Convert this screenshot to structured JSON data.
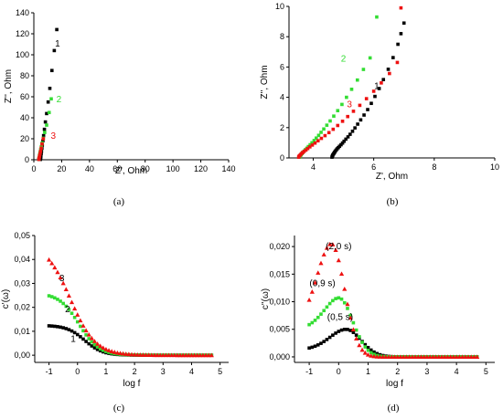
{
  "chart_data": [
    {
      "panel": "a",
      "type": "scatter",
      "caption": "(a)",
      "xlabel": "Z', Ohm",
      "ylabel": "Z'', Ohm",
      "xlim": [
        0,
        140
      ],
      "ylim": [
        0,
        140
      ],
      "xticks": [
        0,
        20,
        40,
        60,
        80,
        100,
        120,
        140
      ],
      "yticks": [
        0,
        20,
        40,
        60,
        80,
        100,
        120,
        140
      ],
      "grid": false,
      "series": [
        {
          "name": "1",
          "color": "#000000",
          "marker": "square",
          "x": [
            4.7,
            4.8,
            4.9,
            5.0,
            5.1,
            5.3,
            5.5,
            5.8,
            6.1,
            6.5,
            7.0,
            7.6,
            8.3,
            9.2,
            10.3,
            11.5,
            13.0,
            14.7,
            16.5
          ],
          "y": [
            0.3,
            1.0,
            2.0,
            3.0,
            4.5,
            6.0,
            8.0,
            11.0,
            14.0,
            18.0,
            23.0,
            29.0,
            36.0,
            44.0,
            55.0,
            68.0,
            85.0,
            104.0,
            124.0
          ]
        },
        {
          "name": "2",
          "color": "#33dd33",
          "marker": "square",
          "x": [
            3.6,
            3.7,
            3.8,
            4.0,
            4.2,
            4.5,
            4.9,
            5.4,
            6.0,
            6.8,
            7.8,
            9.2,
            11.0,
            12.5
          ],
          "y": [
            0.3,
            1.0,
            2.0,
            3.5,
            5.0,
            7.0,
            9.5,
            12.5,
            16.0,
            20.5,
            26.0,
            33.0,
            45.0,
            58.0
          ]
        },
        {
          "name": "3",
          "color": "#ee1111",
          "marker": "square",
          "x": [
            3.6,
            3.7,
            3.9,
            4.1,
            4.4,
            4.8,
            5.3,
            5.9,
            6.8
          ],
          "y": [
            0.3,
            1.0,
            2.0,
            3.5,
            5.5,
            8.0,
            11.0,
            15.0,
            20.0
          ]
        }
      ],
      "annotations": [
        {
          "text": "1",
          "x": 17,
          "y": 108,
          "color": "#000000"
        },
        {
          "text": "2",
          "x": 18,
          "y": 55,
          "color": "#33dd33"
        },
        {
          "text": "3",
          "x": 14,
          "y": 20,
          "color": "#ee1111"
        }
      ]
    },
    {
      "panel": "b",
      "type": "scatter",
      "caption": "(b)",
      "xlabel": "Z', Ohm",
      "ylabel": "Z'', Ohm",
      "xlim": [
        3.2,
        10
      ],
      "ylim": [
        0,
        10
      ],
      "xticks": [
        4,
        6,
        8,
        10
      ],
      "yticks": [
        0,
        2,
        4,
        6,
        8,
        10
      ],
      "grid": false,
      "series": [
        {
          "name": "1",
          "color": "#000000",
          "marker": "square",
          "x": [
            4.62,
            4.63,
            4.64,
            4.65,
            4.67,
            4.69,
            4.71,
            4.73,
            4.76,
            4.79,
            4.83,
            4.87,
            4.92,
            4.97,
            5.02,
            5.08,
            5.15,
            5.22,
            5.3,
            5.38,
            5.47,
            5.57,
            5.68,
            5.8,
            5.92,
            6.04,
            6.18,
            6.32,
            6.48,
            6.64,
            6.8
          ],
          "y": [
            0.05,
            0.1,
            0.15,
            0.2,
            0.26,
            0.32,
            0.38,
            0.45,
            0.52,
            0.6,
            0.68,
            0.77,
            0.87,
            0.98,
            1.1,
            1.24,
            1.39,
            1.56,
            1.76,
            1.98,
            2.23,
            2.51,
            2.83,
            3.19,
            3.6,
            4.06,
            4.58,
            5.17,
            5.85,
            6.62,
            7.5
          ]
        },
        {
          "name": "2",
          "color": "#33dd33",
          "marker": "square",
          "x": [
            3.55,
            3.56,
            3.58,
            3.6,
            3.63,
            3.66,
            3.7,
            3.74,
            3.79,
            3.84,
            3.9,
            3.96,
            4.03,
            4.1,
            4.18,
            4.26,
            4.35,
            4.45,
            4.56,
            4.68,
            4.81,
            4.95,
            5.1,
            5.27,
            5.46,
            5.66
          ],
          "y": [
            0.05,
            0.1,
            0.16,
            0.22,
            0.29,
            0.37,
            0.45,
            0.54,
            0.64,
            0.75,
            0.87,
            1.0,
            1.15,
            1.31,
            1.49,
            1.69,
            1.91,
            2.16,
            2.44,
            2.76,
            3.12,
            3.53,
            4.0,
            4.53,
            5.14,
            5.84
          ]
        },
        {
          "name": "3",
          "color": "#ee1111",
          "marker": "square",
          "x": [
            3.52,
            3.53,
            3.55,
            3.58,
            3.61,
            3.65,
            3.7,
            3.76,
            3.82,
            3.89,
            3.97,
            4.06,
            4.16,
            4.27,
            4.39,
            4.52,
            4.66,
            4.81,
            4.97,
            5.14,
            5.33,
            5.54,
            5.76,
            6.0,
            6.25,
            6.52
          ],
          "y": [
            0.05,
            0.1,
            0.15,
            0.21,
            0.28,
            0.35,
            0.43,
            0.52,
            0.62,
            0.73,
            0.85,
            0.98,
            1.13,
            1.29,
            1.47,
            1.67,
            1.89,
            2.14,
            2.42,
            2.73,
            3.08,
            3.47,
            3.91,
            4.4,
            4.95,
            5.57
          ]
        }
      ],
      "extra_points": [
        {
          "series": "1",
          "x": [
            6.9,
            7.0
          ],
          "y": [
            8.2,
            8.9
          ]
        },
        {
          "series": "2",
          "x": [
            5.88,
            6.1
          ],
          "y": [
            6.6,
            9.3
          ]
        },
        {
          "series": "3",
          "x": [
            6.78,
            6.9
          ],
          "y": [
            6.3,
            9.9
          ]
        }
      ],
      "annotations": [
        {
          "text": "1",
          "x": 6.1,
          "y": 4.55,
          "color": "#000000"
        },
        {
          "text": "2",
          "x": 5.0,
          "y": 6.35,
          "color": "#33dd33"
        },
        {
          "text": "3",
          "x": 5.2,
          "y": 3.35,
          "color": "#ee1111"
        }
      ]
    },
    {
      "panel": "c",
      "type": "scatter",
      "caption": "(c)",
      "xlabel": "log f",
      "ylabel": "c'(ω)",
      "xlim": [
        -1.5,
        5.3
      ],
      "ylim": [
        -0.003,
        0.05
      ],
      "xticks": [
        -1,
        0,
        1,
        2,
        3,
        4,
        5
      ],
      "yticks": [
        0,
        0.01,
        0.02,
        0.03,
        0.04,
        0.05
      ],
      "ytick_labels": [
        "0,00",
        "0,01",
        "0,02",
        "0,03",
        "0,04",
        "0,05"
      ],
      "grid": false,
      "series": [
        {
          "name": "1",
          "color": "#000000",
          "marker": "square",
          "shape": "logistic",
          "low": 0.0125,
          "k": 3.2,
          "x0": 0.25
        },
        {
          "name": "2",
          "color": "#33dd33",
          "marker": "square",
          "shape": "logistic",
          "low": 0.026,
          "k": 2.9,
          "x0": 0.05
        },
        {
          "name": "3",
          "color": "#ee1111",
          "marker": "triangle",
          "shape": "logistic",
          "low": 0.047,
          "k": 2.3,
          "x0": -0.25
        }
      ],
      "x_range": [
        -1.0,
        4.7
      ],
      "points": 58,
      "annotations": [
        {
          "text": "3",
          "x": -0.55,
          "y": 0.031,
          "color": "#000000"
        },
        {
          "text": "2",
          "x": -0.35,
          "y": 0.018,
          "color": "#000000"
        },
        {
          "text": "1",
          "x": -0.15,
          "y": 0.0055,
          "color": "#000000"
        }
      ]
    },
    {
      "panel": "d",
      "type": "scatter",
      "caption": "(d)",
      "xlabel": "log f",
      "ylabel": "c''(ω)",
      "xlim": [
        -1.5,
        5.3
      ],
      "ylim": [
        -0.001,
        0.022
      ],
      "xticks": [
        -1,
        0,
        1,
        2,
        3,
        4,
        5
      ],
      "yticks": [
        0,
        0.005,
        0.01,
        0.015,
        0.02
      ],
      "ytick_labels": [
        "0,000",
        "0,005",
        "0,010",
        "0,015",
        "0,020"
      ],
      "grid": false,
      "series": [
        {
          "name": "(0,5 s)",
          "color": "#000000",
          "marker": "square",
          "shape": "peak",
          "peak": 0.005,
          "center": 0.25,
          "width": 0.8,
          "base": 0.0013
        },
        {
          "name": "(0,9 s)",
          "color": "#33dd33",
          "marker": "square",
          "shape": "peak",
          "peak": 0.0107,
          "center": 0.0,
          "width": 0.75,
          "base": 0.005
        },
        {
          "name": "(2,0 s)",
          "color": "#ee1111",
          "marker": "triangle",
          "shape": "peak",
          "peak": 0.0205,
          "center": -0.25,
          "width": 0.7,
          "base": 0.006
        }
      ],
      "x_range": [
        -1.0,
        4.7
      ],
      "points": 58,
      "annotations": [
        {
          "text": "(2,0 s)",
          "x": 0.0,
          "y": 0.0195,
          "color": "#000000"
        },
        {
          "text": "(0,9 s)",
          "x": -0.55,
          "y": 0.0128,
          "color": "#000000"
        },
        {
          "text": "(0,5 s)",
          "x": 0.05,
          "y": 0.0067,
          "color": "#000000"
        }
      ]
    }
  ]
}
